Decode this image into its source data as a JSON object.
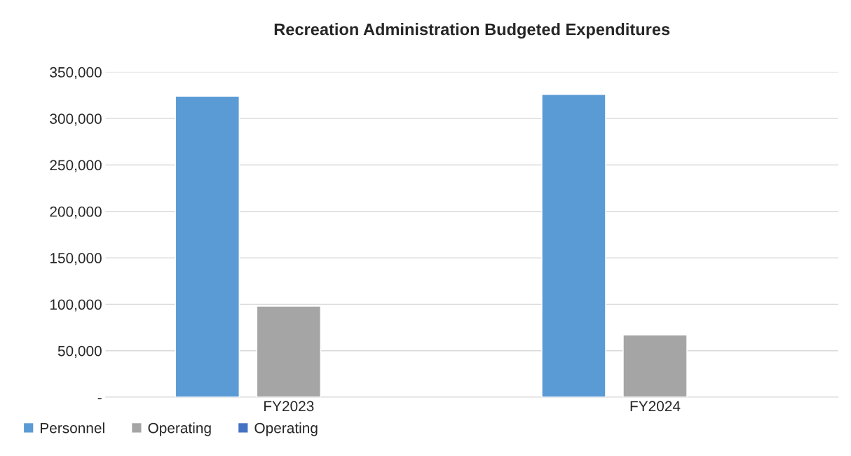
{
  "chart_data": {
    "type": "bar",
    "title": "Recreation Administration Budgeted Expenditures",
    "categories": [
      "FY2023",
      "FY2024"
    ],
    "series": [
      {
        "name": "Personnel",
        "color": "#5b9bd5",
        "values": [
          324000,
          326000
        ]
      },
      {
        "name": "Operating",
        "color": "#a5a5a5",
        "values": [
          98000,
          67000
        ]
      },
      {
        "name": "Operating",
        "color": "#4472c4",
        "values": [
          null,
          null
        ]
      }
    ],
    "ylim": [
      0,
      350000
    ],
    "yticks": [
      {
        "value": 0,
        "label": "-"
      },
      {
        "value": 50000,
        "label": "50,000"
      },
      {
        "value": 100000,
        "label": "100,000"
      },
      {
        "value": 150000,
        "label": "150,000"
      },
      {
        "value": 200000,
        "label": "200,000"
      },
      {
        "value": 250000,
        "label": "250,000"
      },
      {
        "value": 300000,
        "label": "300,000"
      },
      {
        "value": 350000,
        "label": "350,000"
      }
    ],
    "grid": "y",
    "legend": "bottom left"
  }
}
